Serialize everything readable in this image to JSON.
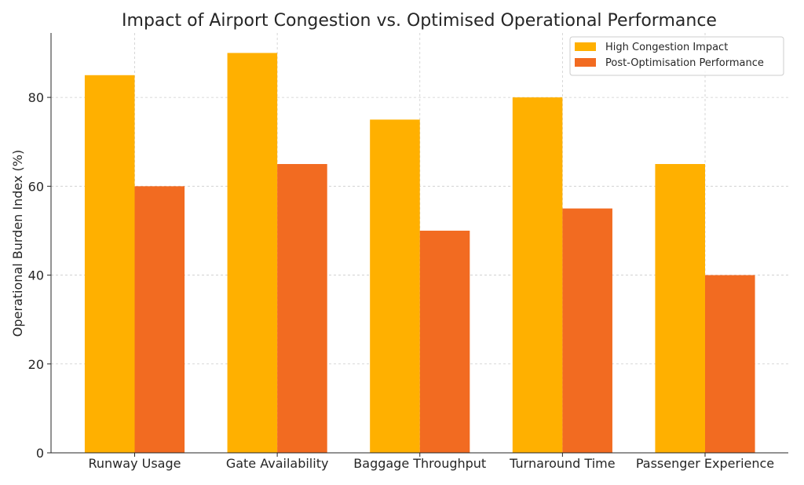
{
  "chart_data": {
    "type": "bar",
    "title": "Impact of Airport Congestion vs. Optimised Operational Performance",
    "xlabel": "",
    "ylabel": "Operational Burden Index (%)",
    "categories": [
      "Runway Usage",
      "Gate Availability",
      "Baggage Throughput",
      "Turnaround Time",
      "Passenger Experience"
    ],
    "series": [
      {
        "name": "High Congestion Impact",
        "values": [
          85,
          90,
          75,
          80,
          65
        ],
        "color": "#FFB000"
      },
      {
        "name": "Post-Optimisation Performance",
        "values": [
          60,
          65,
          50,
          55,
          40
        ],
        "color": "#F26B21"
      }
    ],
    "ylim": [
      0,
      94.5
    ],
    "yticks": [
      0,
      20,
      40,
      60,
      80
    ],
    "grid": true,
    "legend_position": "top-right"
  }
}
